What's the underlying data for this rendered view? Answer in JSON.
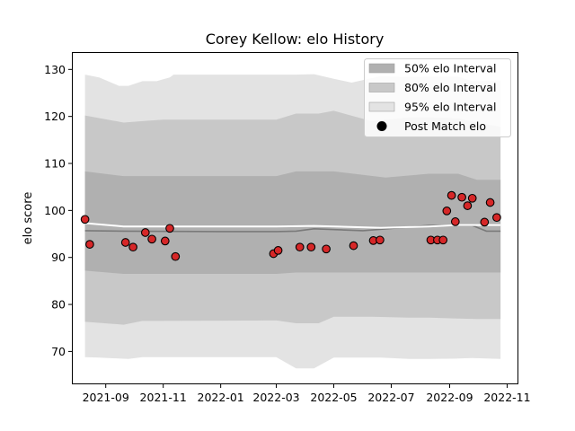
{
  "chart_data": {
    "type": "area",
    "title": "Corey Kellow: elo History",
    "xlabel": "",
    "ylabel": "elo score",
    "ylim": [
      63.2,
      133.5
    ],
    "xlim": [
      "2021-07-28",
      "2022-11-12"
    ],
    "x_ticks": [
      "2021-09",
      "2021-11",
      "2022-01",
      "2022-03",
      "2022-05",
      "2022-07",
      "2022-09",
      "2022-11"
    ],
    "y_ticks": [
      70,
      80,
      90,
      100,
      110,
      120,
      130
    ],
    "grid": false,
    "legend_position": "top-right",
    "colors": {
      "band50": "#b0b0b0",
      "band80": "#c8c8c8",
      "band95": "#e3e3e3",
      "mean_line": "#7a7a7a",
      "white_line": "#ffffff",
      "point_fill": "#d62728",
      "point_edge": "#000000"
    },
    "series": [
      {
        "name": "50% elo Interval",
        "kind": "band",
        "x": [
          "2021-08-10",
          "2021-09-20",
          "2021-11-01",
          "2022-03-01",
          "2022-03-22",
          "2022-05-01",
          "2022-06-25",
          "2022-08-10",
          "2022-09-10",
          "2022-09-30",
          "2022-10-25"
        ],
        "lower": [
          87.2,
          86.5,
          86.5,
          86.5,
          86.8,
          86.8,
          86.8,
          86.8,
          86.8,
          86.8,
          86.8
        ],
        "upper": [
          108.3,
          107.3,
          107.3,
          107.3,
          108.3,
          108.3,
          107.0,
          107.8,
          107.8,
          106.5,
          106.5
        ]
      },
      {
        "name": "80% elo Interval",
        "kind": "band",
        "x": [
          "2021-08-10",
          "2021-09-20",
          "2021-10-10",
          "2021-11-01",
          "2022-03-01",
          "2022-03-22",
          "2022-04-15",
          "2022-05-01",
          "2022-06-10",
          "2022-07-20",
          "2022-08-10",
          "2022-09-10",
          "2022-09-30",
          "2022-10-25"
        ],
        "lower": [
          76.3,
          75.7,
          76.5,
          76.5,
          76.6,
          76.0,
          76.0,
          77.4,
          77.4,
          77.2,
          77.2,
          77.0,
          76.9,
          76.9
        ],
        "upper": [
          120.2,
          118.7,
          119.0,
          119.3,
          119.3,
          120.6,
          120.6,
          121.2,
          119.0,
          119.8,
          119.8,
          119.6,
          118.7,
          117.8
        ]
      },
      {
        "name": "95% elo Interval",
        "kind": "band",
        "x": [
          "2021-08-10",
          "2021-08-25",
          "2021-09-15",
          "2021-09-25",
          "2021-10-10",
          "2021-10-25",
          "2021-11-08",
          "2021-11-12",
          "2022-03-01",
          "2022-03-22",
          "2022-04-10",
          "2022-05-01",
          "2022-05-20",
          "2022-06-20",
          "2022-07-20",
          "2022-08-10",
          "2022-09-10",
          "2022-09-25",
          "2022-10-25"
        ],
        "lower": [
          68.8,
          68.7,
          68.5,
          68.4,
          68.8,
          68.8,
          68.8,
          68.8,
          68.8,
          66.4,
          66.4,
          68.7,
          68.7,
          68.7,
          68.4,
          68.4,
          68.5,
          68.6,
          68.4
        ],
        "upper": [
          128.9,
          128.3,
          126.5,
          126.5,
          127.5,
          127.5,
          128.3,
          128.9,
          128.9,
          128.9,
          129.0,
          128.0,
          127.2,
          128.6,
          128.4,
          128.5,
          128.5,
          127.5,
          127.7
        ]
      },
      {
        "name": "mean",
        "kind": "line",
        "color": "#7a7a7a",
        "x": [
          "2021-08-10",
          "2021-09-20",
          "2022-01-01",
          "2022-03-01",
          "2022-03-22",
          "2022-04-10",
          "2022-06-01",
          "2022-08-10",
          "2022-09-10",
          "2022-09-25",
          "2022-10-10",
          "2022-10-25"
        ],
        "values": [
          95.7,
          95.6,
          95.5,
          95.5,
          95.6,
          96.1,
          95.7,
          96.8,
          96.8,
          96.8,
          95.6,
          95.6
        ]
      },
      {
        "name": "white",
        "kind": "line",
        "color": "#ffffff",
        "x": [
          "2021-08-10",
          "2021-09-20",
          "2022-03-01",
          "2022-04-10",
          "2022-06-20",
          "2022-08-10",
          "2022-09-10",
          "2022-10-25"
        ],
        "values": [
          97.3,
          96.6,
          96.6,
          96.7,
          96.3,
          96.6,
          96.9,
          96.9
        ]
      },
      {
        "name": "Post Match elo",
        "kind": "scatter",
        "x": [
          "2021-08-10",
          "2021-08-15",
          "2021-09-22",
          "2021-09-30",
          "2021-10-13",
          "2021-10-20",
          "2021-11-03",
          "2021-11-08",
          "2021-11-14",
          "2022-02-26",
          "2022-03-03",
          "2022-03-26",
          "2022-04-07",
          "2022-04-23",
          "2022-05-22",
          "2022-06-12",
          "2022-06-19",
          "2022-08-12",
          "2022-08-19",
          "2022-08-25",
          "2022-08-29",
          "2022-09-03",
          "2022-09-07",
          "2022-09-14",
          "2022-09-20",
          "2022-09-25",
          "2022-10-08",
          "2022-10-14",
          "2022-10-21"
        ],
        "values": [
          98.1,
          92.8,
          93.2,
          92.2,
          95.3,
          93.9,
          93.5,
          96.2,
          90.2,
          90.8,
          91.5,
          92.2,
          92.2,
          91.8,
          92.5,
          93.6,
          93.7,
          93.7,
          93.7,
          93.7,
          99.9,
          103.2,
          97.6,
          102.8,
          101.0,
          102.6,
          97.5,
          101.7,
          98.5
        ]
      }
    ],
    "legend": [
      {
        "label": "50% elo Interval",
        "swatch": "band50"
      },
      {
        "label": "80% elo Interval",
        "swatch": "band80"
      },
      {
        "label": "95% elo Interval",
        "swatch": "band95"
      },
      {
        "label": "Post Match elo",
        "swatch": "point"
      }
    ]
  }
}
